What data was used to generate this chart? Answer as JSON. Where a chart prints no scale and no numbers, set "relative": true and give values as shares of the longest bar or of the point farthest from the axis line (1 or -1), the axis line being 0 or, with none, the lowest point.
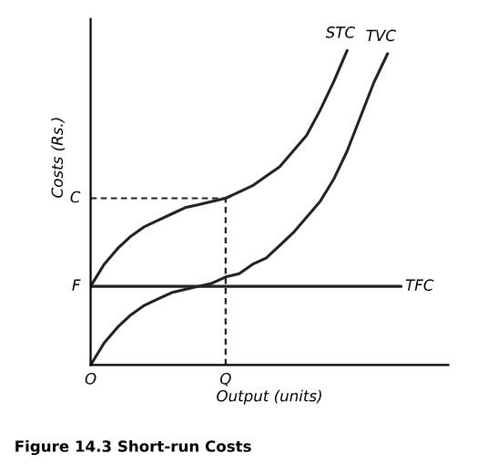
{
  "chart_data": {
    "type": "line",
    "relative": true,
    "xlabel": "Output (units)",
    "ylabel": "Costs (Rs.)",
    "categories": [
      "O",
      null,
      null,
      null,
      null,
      null,
      null,
      null,
      null,
      null,
      "Q",
      null,
      null,
      null,
      null,
      null,
      null,
      null,
      null,
      null,
      null,
      null,
      null,
      null
    ],
    "series": [
      {
        "name": "STC",
        "color": "#222222",
        "values": [
          0.25,
          0.32,
          0.37,
          0.41,
          0.44,
          0.46,
          0.48,
          0.5,
          0.51,
          0.52,
          0.53,
          0.55,
          0.57,
          0.6,
          0.63,
          0.68,
          0.73,
          0.81,
          0.9,
          1.0,
          null,
          null,
          null,
          null
        ]
      },
      {
        "name": "TVC",
        "color": "#222222",
        "values": [
          0,
          0.07,
          0.12,
          0.16,
          0.19,
          0.21,
          0.23,
          0.24,
          0.25,
          0.26,
          0.28,
          0.29,
          0.32,
          0.34,
          0.38,
          0.42,
          0.47,
          0.52,
          0.59,
          0.68,
          0.79,
          0.9,
          0.99,
          null
        ]
      },
      {
        "name": "TFC",
        "color": "#222222",
        "values": [
          0.25,
          0.25,
          0.25,
          0.25,
          0.25,
          0.25,
          0.25,
          0.25,
          0.25,
          0.25,
          0.25,
          0.25,
          0.25,
          0.25,
          0.25,
          0.25,
          0.25,
          0.25,
          0.25,
          0.25,
          0.25,
          0.25,
          0.25,
          0.25
        ]
      }
    ],
    "annotations": [
      {
        "text": "F",
        "x": "O",
        "y": 0.25
      },
      {
        "text": "C",
        "x": "Q",
        "y": 0.53
      },
      "Figure 14.3 Short-run Costs"
    ]
  }
}
